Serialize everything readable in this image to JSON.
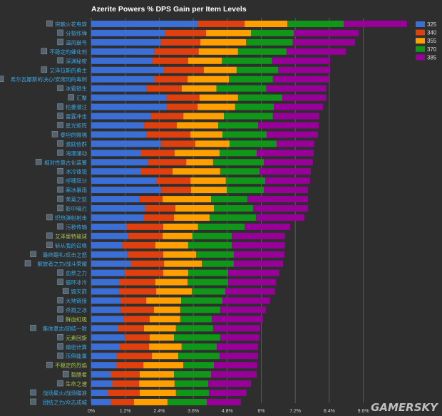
{
  "chart_data": {
    "type": "bar",
    "orientation": "horizontal",
    "stacked": true,
    "title": "Azerite Powers % DPS Gain per Item Levels",
    "xlabel": "",
    "ylabel": "",
    "xlim": [
      0,
      10.8
    ],
    "xticks": [
      "0%",
      "1.2%",
      "2.4%",
      "3.6%",
      "4.8%",
      "6%",
      "7.2%",
      "8.4%",
      "9.6%"
    ],
    "xtick_values": [
      0,
      1.2,
      2.4,
      3.6,
      4.8,
      6,
      7.2,
      8.4,
      9.6
    ],
    "grid": true,
    "legend_position": "top-right",
    "watermark": "GAMERSKY",
    "categories": [
      "突触火花电容",
      "分裂炸弹",
      "温风鼓号",
      "不稳定的催化剂",
      "深渊秘密",
      "艾泽拉斯的勇士",
      "希尔瓦娜斯的决心/安席冈的毒刺",
      "冰霜锁生",
      "汇聚",
      "枯萎灌注",
      "雷霆冲击",
      "星光矩阵",
      "泰坦的赐福",
      "激励信群",
      "海潮涌动",
      "相对性莫古化装置",
      "冰冷锋锐",
      "呼啸狂沙",
      "寒冰暴雨",
      "茉莫之怒",
      "影中暗刃",
      "炽热弹射射击",
      "污秽传输",
      "艾泽里特玻球",
      "斩从我的召唤",
      "最终翻礼/反击之怒",
      "解放者之力/战斗荣耀",
      "血祭之力",
      "循环冰冷",
      "毁灭箭",
      "大地链接",
      "杀戮之冰",
      "鲜血虹吸",
      "集体意志/团结一致",
      "元素回旋",
      "缜密计算",
      "压倒能量",
      "不稳定的烈焰",
      "裂肠者",
      "生命之速",
      "战场星火/战场瞄准",
      "团结之力/众志成城"
    ],
    "category_label_color": [
      "blue",
      "blue",
      "blue",
      "blue",
      "blue",
      "blue",
      "blue",
      "blue",
      "blue",
      "blue",
      "blue",
      "blue",
      "blue",
      "blue",
      "blue",
      "blue",
      "blue",
      "blue",
      "blue",
      "blue",
      "blue",
      "blue",
      "blue",
      "green",
      "blue",
      "blue",
      "blue",
      "blue",
      "blue",
      "blue",
      "blue",
      "blue",
      "green",
      "blue",
      "green",
      "blue",
      "blue",
      "green",
      "green",
      "green",
      "blue",
      "blue"
    ],
    "series": [
      {
        "name": "325",
        "color": "#3b6fd6",
        "values": [
          3.77,
          2.6,
          2.45,
          2.23,
          2.16,
          2.57,
          2.23,
          1.94,
          2.67,
          2.67,
          2.11,
          1.87,
          1.96,
          2.47,
          1.76,
          2.01,
          1.76,
          2.29,
          2.47,
          1.69,
          1.91,
          1.86,
          1.26,
          1.31,
          1.11,
          1.28,
          1.41,
          1.18,
          0.98,
          0.98,
          1.03,
          1.03,
          1.13,
          0.93,
          1.18,
          1.01,
          0.91,
          0.88,
          0.68,
          0.73,
          0.58,
          0.7
        ]
      },
      {
        "name": "340",
        "color": "#e0400e",
        "values": [
          1.64,
          1.45,
          1.4,
          1.56,
          1.26,
          1.4,
          1.17,
          1.25,
          1.15,
          1.08,
          1.14,
          1.15,
          1.54,
          1.2,
          1.18,
          1.34,
          1.11,
          1.21,
          1.05,
          0.83,
          1.06,
          1.06,
          1.28,
          1.21,
          1.15,
          1.26,
          1.16,
          1.36,
          1.28,
          1.31,
          0.91,
          1.18,
          0.93,
          0.93,
          0.88,
          1.03,
          1.23,
          0.96,
          1.03,
          0.96,
          1.13,
          0.81
        ]
      },
      {
        "name": "355",
        "color": "#ff9f00",
        "values": [
          1.51,
          1.59,
          1.61,
          1.39,
          1.19,
          1.16,
          1.46,
          1.23,
          1.36,
          1.33,
          1.43,
          1.46,
          1.13,
          1.21,
          1.59,
          0.95,
          1.68,
          1.25,
          1.26,
          1.71,
          1.36,
          1.26,
          1.23,
          1.05,
          1.16,
          1.16,
          1.33,
          0.88,
          1.14,
          1.26,
          1.23,
          0.93,
          1.08,
          1.13,
          0.86,
          1.15,
          0.93,
          1.41,
          1.21,
          1.25,
          1.28,
          1.18
        ]
      },
      {
        "name": "370",
        "color": "#109618",
        "values": [
          1.99,
          1.51,
          1.65,
          1.71,
          1.77,
          1.47,
          1.55,
          1.76,
          1.56,
          1.36,
          1.73,
          1.41,
          1.56,
          1.66,
          1.31,
          1.79,
          1.39,
          1.39,
          1.31,
          1.28,
          1.38,
          1.63,
          1.64,
          1.39,
          1.54,
          1.33,
          1.13,
          1.41,
          1.43,
          1.18,
          1.46,
          1.41,
          1.11,
          1.31,
          1.63,
          1.24,
          1.46,
          1.08,
          1.31,
          1.19,
          1.16,
          1.39
        ]
      },
      {
        "name": "385",
        "color": "#990099",
        "values": [
          2.23,
          2.29,
          2.2,
          2.09,
          2.05,
          1.83,
          1.97,
          2.12,
          1.56,
          1.74,
          1.64,
          2.14,
          1.81,
          1.33,
          2.01,
          1.73,
          1.81,
          1.58,
          1.56,
          2.14,
          1.94,
          1.71,
          1.61,
          1.88,
          1.88,
          1.79,
          1.74,
          1.81,
          1.69,
          1.76,
          1.68,
          1.61,
          1.81,
          1.66,
          1.39,
          1.46,
          1.36,
          1.53,
          1.61,
          1.51,
          1.33,
          1.2
        ]
      }
    ]
  }
}
